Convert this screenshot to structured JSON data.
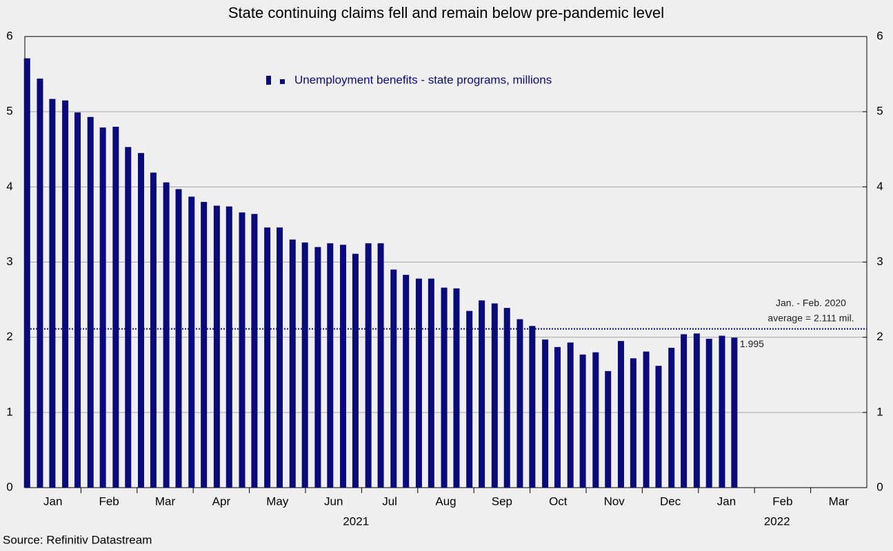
{
  "chart_data": {
    "type": "bar",
    "title": "State continuing claims fell and remain below pre-pandemic level",
    "source": "Source: Refinitiv Datastream",
    "series": [
      {
        "name": "Unemployment benefits - state programs, millions",
        "color": "#0a0a78",
        "values": [
          5.71,
          5.44,
          5.17,
          5.15,
          4.99,
          4.93,
          4.79,
          4.8,
          4.53,
          4.45,
          4.19,
          4.06,
          3.97,
          3.87,
          3.8,
          3.75,
          3.74,
          3.66,
          3.64,
          3.46,
          3.46,
          3.3,
          3.26,
          3.2,
          3.25,
          3.23,
          3.11,
          3.25,
          3.25,
          2.9,
          2.83,
          2.78,
          2.78,
          2.66,
          2.65,
          2.35,
          2.49,
          2.45,
          2.39,
          2.24,
          2.15,
          1.97,
          1.87,
          1.93,
          1.77,
          1.8,
          1.55,
          1.95,
          1.72,
          1.81,
          1.62,
          1.86,
          2.04,
          2.05,
          1.98,
          2.02,
          1.995
        ],
        "value_labels": [
          null,
          null,
          null,
          null,
          null,
          null,
          null,
          null,
          null,
          null,
          null,
          null,
          null,
          null,
          null,
          null,
          null,
          null,
          null,
          null,
          null,
          null,
          null,
          null,
          null,
          null,
          null,
          null,
          null,
          null,
          null,
          null,
          null,
          null,
          null,
          null,
          null,
          null,
          null,
          null,
          null,
          null,
          null,
          null,
          null,
          null,
          null,
          null,
          null,
          null,
          null,
          null,
          null,
          null,
          null,
          null,
          "1.995"
        ]
      }
    ],
    "x": [
      0.04,
      0.27,
      0.49,
      0.72,
      0.94,
      1.17,
      1.39,
      1.62,
      1.84,
      2.07,
      2.29,
      2.52,
      2.74,
      2.97,
      3.19,
      3.42,
      3.64,
      3.87,
      4.09,
      4.32,
      4.54,
      4.77,
      4.99,
      5.22,
      5.44,
      5.67,
      5.89,
      6.12,
      6.34,
      6.57,
      6.79,
      7.02,
      7.24,
      7.47,
      7.69,
      7.92,
      8.14,
      8.37,
      8.59,
      8.82,
      9.04,
      9.27,
      9.49,
      9.72,
      9.94,
      10.17,
      10.39,
      10.62,
      10.84,
      11.07,
      11.29,
      11.52,
      11.74,
      11.97,
      12.19,
      12.42,
      12.64
    ],
    "xlim": [
      0,
      15
    ],
    "xticks": [
      {
        "value": 0.5,
        "label": "Jan"
      },
      {
        "value": 1.5,
        "label": "Feb"
      },
      {
        "value": 2.5,
        "label": "Mar"
      },
      {
        "value": 3.5,
        "label": "Apr"
      },
      {
        "value": 4.5,
        "label": "May"
      },
      {
        "value": 5.5,
        "label": "Jun"
      },
      {
        "value": 6.5,
        "label": "Jul"
      },
      {
        "value": 7.5,
        "label": "Aug"
      },
      {
        "value": 8.5,
        "label": "Sep"
      },
      {
        "value": 9.5,
        "label": "Oct"
      },
      {
        "value": 10.5,
        "label": "Nov"
      },
      {
        "value": 11.5,
        "label": "Dec"
      },
      {
        "value": 12.5,
        "label": "Jan"
      },
      {
        "value": 13.5,
        "label": "Feb"
      },
      {
        "value": 14.5,
        "label": "Mar"
      }
    ],
    "xminorticks": [
      1,
      2,
      3,
      4,
      5,
      6,
      7,
      8,
      9,
      10,
      11,
      12,
      13,
      14
    ],
    "xgroups": [
      {
        "value": 5.9,
        "label": "2021"
      },
      {
        "value": 13.4,
        "label": "2022"
      }
    ],
    "ylim": [
      0,
      6
    ],
    "yticks": [
      0,
      1,
      2,
      3,
      4,
      5,
      6
    ],
    "y2lim": [
      0,
      6
    ],
    "y2ticks": [
      0,
      1,
      2,
      3,
      4,
      5,
      6
    ],
    "grid": true,
    "reference_line": {
      "value": 2.111,
      "color": "#0a0a78",
      "lines": [
        "Jan. - Feb. 2020",
        "average = 2.111 mil."
      ]
    }
  }
}
